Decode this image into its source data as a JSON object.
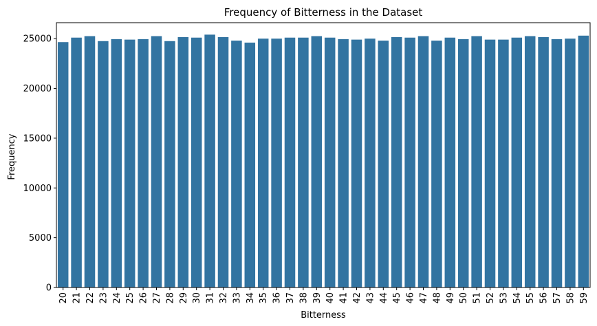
{
  "chart_data": {
    "type": "bar",
    "title": "Frequency of Bitterness in the Dataset",
    "xlabel": "Bitterness",
    "ylabel": "Frequency",
    "ylim": [
      0,
      26600
    ],
    "yticks": [
      0,
      5000,
      10000,
      15000,
      20000,
      25000
    ],
    "grid": false,
    "bar_color": "#3274a1",
    "categories": [
      "20",
      "21",
      "22",
      "23",
      "24",
      "25",
      "26",
      "27",
      "28",
      "29",
      "30",
      "31",
      "32",
      "33",
      "34",
      "35",
      "36",
      "37",
      "38",
      "39",
      "40",
      "41",
      "42",
      "43",
      "44",
      "45",
      "46",
      "47",
      "48",
      "49",
      "50",
      "51",
      "52",
      "53",
      "54",
      "55",
      "56",
      "57",
      "58",
      "59"
    ],
    "values": [
      24650,
      25100,
      25250,
      24750,
      24950,
      24900,
      24950,
      25250,
      24750,
      25150,
      25100,
      25400,
      25150,
      24800,
      24600,
      25000,
      25000,
      25100,
      25100,
      25250,
      25100,
      24950,
      24900,
      25000,
      24800,
      25150,
      25100,
      25250,
      24800,
      25100,
      24950,
      25250,
      24900,
      24900,
      25100,
      25250,
      25150,
      24950,
      25000,
      25300
    ]
  }
}
